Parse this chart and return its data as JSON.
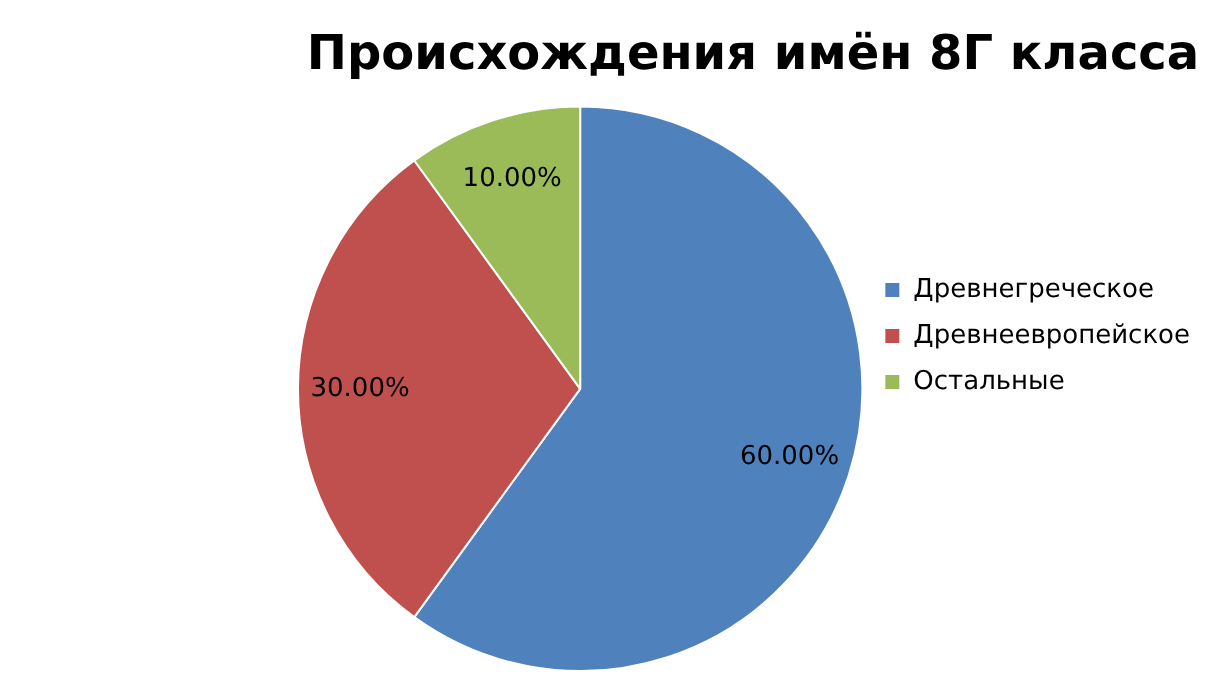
{
  "chart_data": {
    "type": "pie",
    "title": "Происхождения имён 8Г класса",
    "categories": [
      "Древнегреческое",
      "Древнеевропейское",
      "Остальные"
    ],
    "values": [
      60,
      30,
      10
    ],
    "colors": [
      "#4f81bd",
      "#c0504d",
      "#9bbb59"
    ],
    "value_labels": [
      "60.00%",
      "30.00%",
      "10.00%"
    ],
    "legend": "right"
  }
}
